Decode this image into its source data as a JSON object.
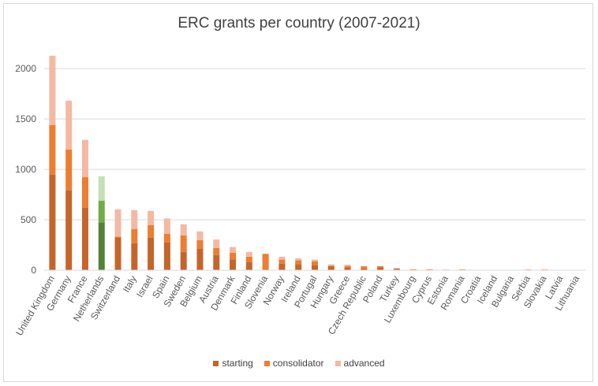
{
  "chart_data": {
    "type": "bar",
    "stacked": true,
    "title": "ERC grants per country (2007-2021)",
    "xlabel": "",
    "ylabel": "",
    "ylim": [
      0,
      2000
    ],
    "yticks": [
      0,
      500,
      1000,
      1500,
      2000
    ],
    "grid": true,
    "legend": "bottom",
    "categories": [
      "United Kingdom",
      "Germany",
      "France",
      "Netherlands",
      "Switzerland",
      "Italy",
      "Israel",
      "Spain",
      "Sweden",
      "Belgium",
      "Austria",
      "Denmark",
      "Finland",
      "Slovenia",
      "Norway",
      "Ireland",
      "Portugal",
      "Hungary",
      "Greece",
      "Czech Republic",
      "Poland",
      "Turkey",
      "Luxembourg",
      "Cyprus",
      "Estonia",
      "Romania",
      "Croatia",
      "Iceland",
      "Bulgaria",
      "Serbia",
      "Slovakia",
      "Latvia",
      "Lithuania"
    ],
    "series": [
      {
        "name": "starting",
        "color": "#c5652a",
        "values": [
          948,
          792,
          620,
          474,
          325,
          268,
          323,
          276,
          182,
          211,
          151,
          105,
          81,
          0,
          65,
          58,
          50,
          39,
          29,
          18,
          29,
          13,
          3,
          2,
          0,
          2,
          0,
          0,
          0,
          1,
          1,
          0,
          0
        ]
      },
      {
        "name": "consolidator",
        "color": "#ed7d31",
        "values": [
          492,
          406,
          304,
          216,
          8,
          141,
          125,
          86,
          164,
          88,
          70,
          68,
          53,
          162,
          40,
          39,
          39,
          5,
          13,
          21,
          10,
          3,
          6,
          7,
          1,
          6,
          0,
          0,
          0,
          6,
          6,
          0,
          0
        ]
      },
      {
        "name": "advanced",
        "color": "#f4b9a2",
        "values": [
          687,
          484,
          368,
          242,
          271,
          187,
          140,
          151,
          110,
          86,
          84,
          57,
          47,
          0,
          29,
          21,
          16,
          14,
          13,
          0,
          3,
          8,
          2,
          1,
          6,
          0,
          4,
          4,
          4,
          0,
          0,
          0,
          0
        ]
      }
    ],
    "highlight": {
      "category": "Netherlands",
      "colors": [
        "#548235",
        "#70ad47",
        "#c5e0b4"
      ]
    }
  }
}
